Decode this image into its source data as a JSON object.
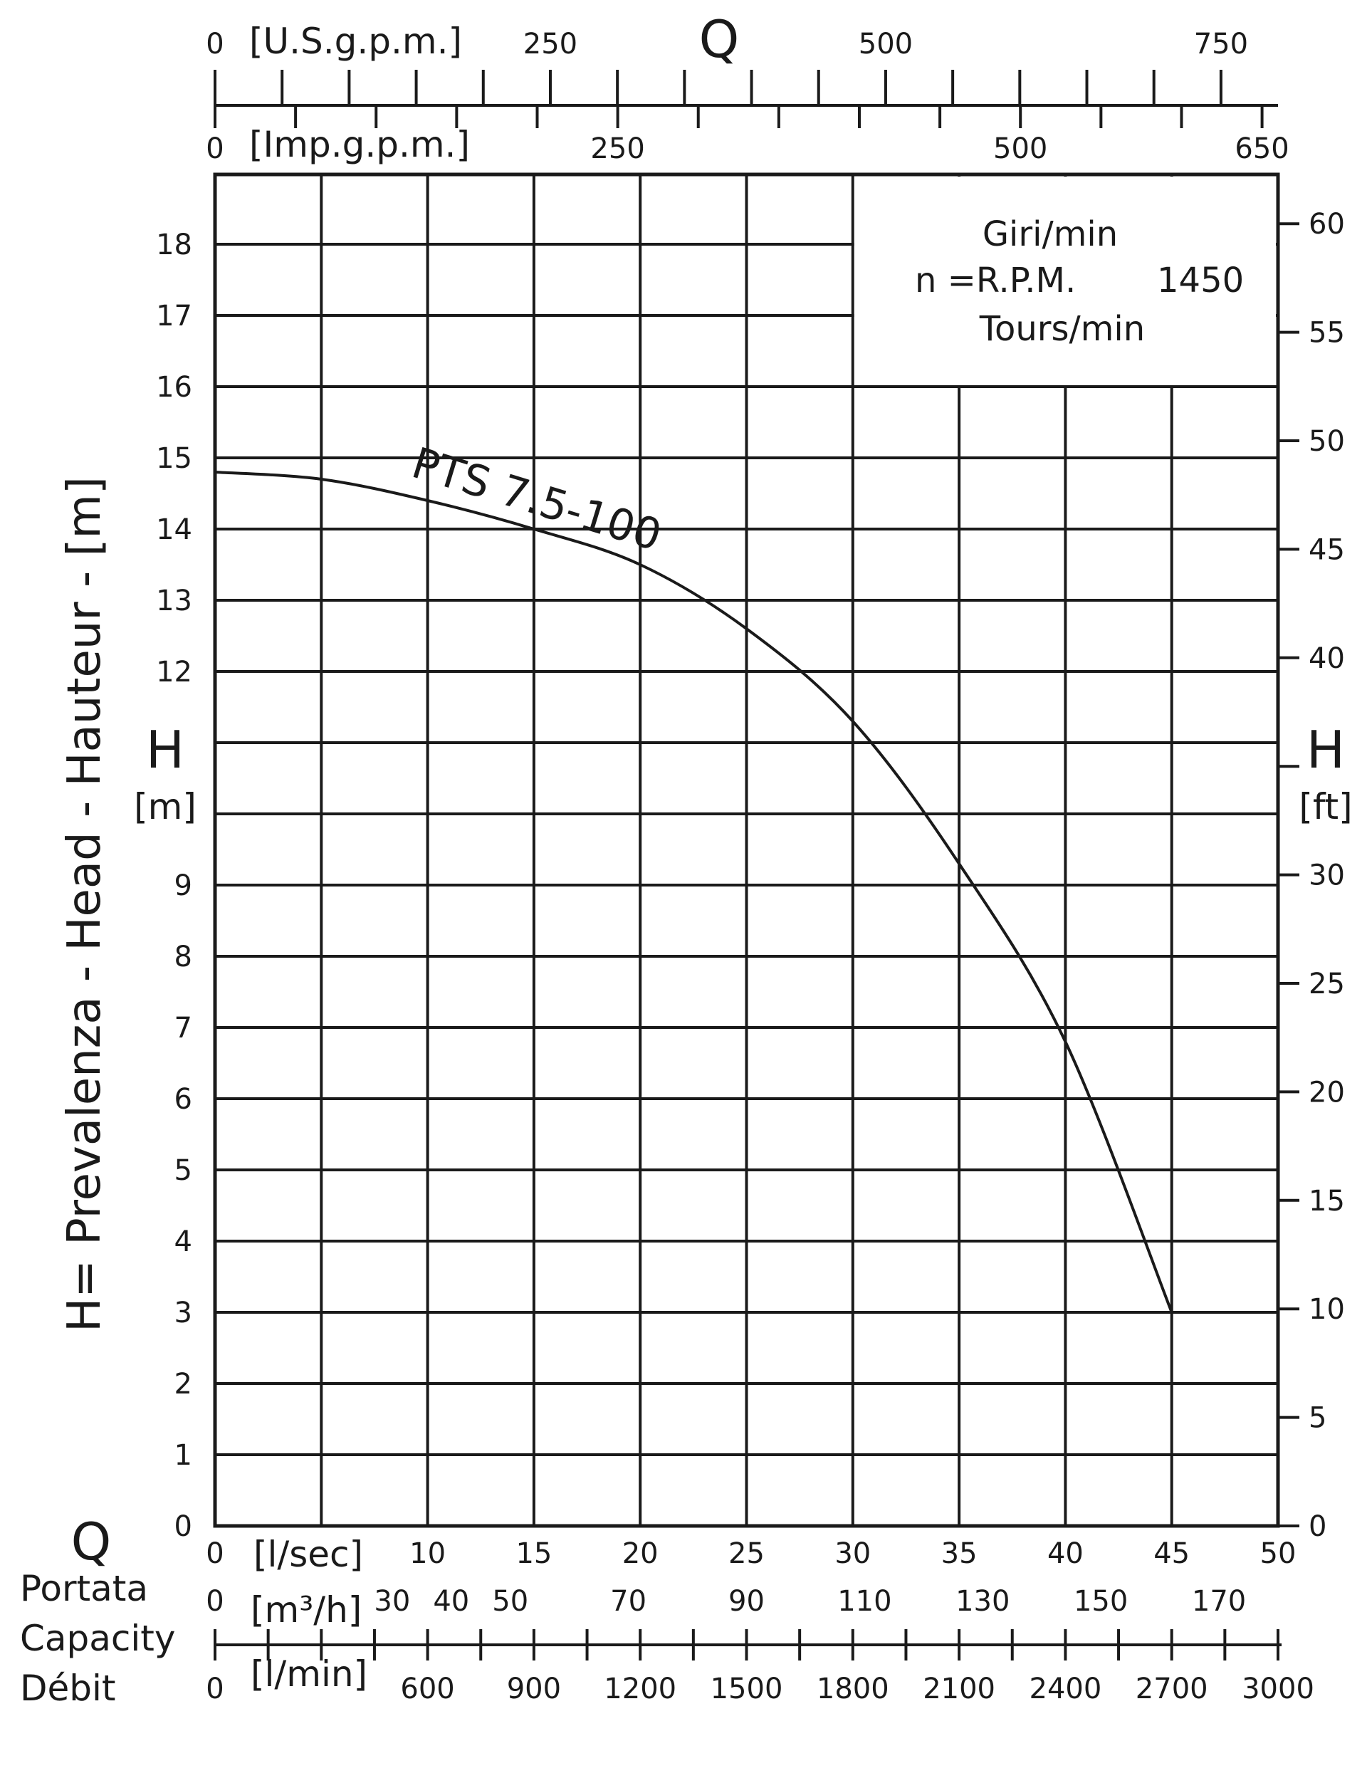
{
  "chart_data": {
    "type": "line",
    "series": [
      {
        "name": "PTS 7.5-100",
        "x": [
          0,
          5,
          10,
          15,
          20,
          25,
          30,
          35,
          40,
          45
        ],
        "y": [
          14.8,
          14.7,
          14.4,
          14.0,
          13.5,
          12.6,
          11.3,
          9.3,
          6.8,
          3.0
        ]
      }
    ],
    "x_axes": {
      "lsec": {
        "unit": "[l/sec]",
        "min": 0,
        "max": 50,
        "ticks": [
          "0",
          "5",
          "10",
          "15",
          "20",
          "25",
          "30",
          "35",
          "40",
          "45",
          "50"
        ],
        "visible_labels": [
          "0",
          "10",
          "15",
          "20",
          "25",
          "30",
          "35",
          "40",
          "45",
          "50"
        ]
      },
      "m3h": {
        "unit": "[m³/h]",
        "labels": [
          "0",
          "30",
          "40",
          "50",
          "70",
          "90",
          "110",
          "130",
          "150",
          "170"
        ]
      },
      "lmin": {
        "unit": "[l/min]",
        "labels": [
          "0",
          "600",
          "900",
          "1200",
          "1500",
          "1800",
          "2100",
          "2400",
          "2700",
          "3000"
        ]
      },
      "usgpm": {
        "unit": "[U.S.g.p.m.]",
        "labels": [
          "0",
          "250",
          "500",
          "750"
        ]
      },
      "impgpm": {
        "unit": "[Imp.g.p.m.]",
        "labels": [
          "0",
          "250",
          "500",
          "650"
        ]
      }
    },
    "y_axes": {
      "m": {
        "min": 0,
        "max": 18,
        "ticks": [
          "0",
          "1",
          "2",
          "3",
          "4",
          "5",
          "6",
          "7",
          "8",
          "9",
          "10",
          "11",
          "12",
          "13",
          "14",
          "15",
          "16",
          "17",
          "18"
        ],
        "visible_labels": [
          "0",
          "1",
          "2",
          "3",
          "4",
          "5",
          "6",
          "7",
          "8",
          "9",
          "12",
          "13",
          "14",
          "15",
          "16",
          "17",
          "18"
        ],
        "symbol": "H",
        "unit": "[m]"
      },
      "ft": {
        "labels": [
          "0",
          "5",
          "10",
          "15",
          "20",
          "25",
          "30",
          "40",
          "45",
          "50",
          "55",
          "60"
        ],
        "symbol": "H",
        "unit": "[ft]"
      }
    },
    "ylabel": "H= Prevalenza - Head - Hauteur - [m]",
    "q_symbol": "Q",
    "capacity_words": [
      "Portata",
      "Capacity",
      "Débit"
    ],
    "grid": true,
    "speed_box": {
      "line1": "Giri/min",
      "line2_prefix": "n =R.P.M.",
      "line2_value": "1450",
      "line3": "Tours/min"
    }
  }
}
